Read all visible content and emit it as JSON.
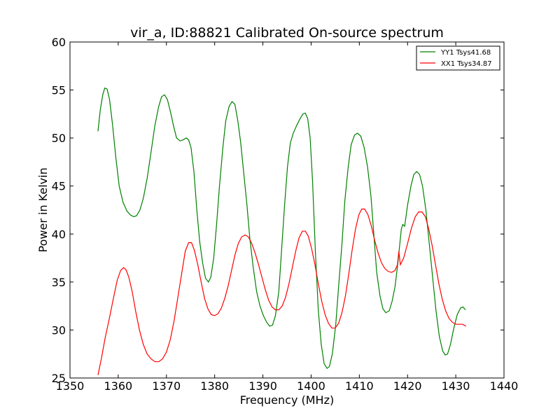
{
  "chart_data": {
    "type": "line",
    "title": "vir_a, ID:88821 Calibrated On-source spectrum",
    "xlabel": "Frequency (MHz)",
    "ylabel": "Power in Kelvin",
    "xlim": [
      1350,
      1440
    ],
    "ylim": [
      25,
      60
    ],
    "xticks": [
      1350,
      1360,
      1370,
      1380,
      1390,
      1400,
      1410,
      1420,
      1430,
      1440
    ],
    "yticks": [
      25,
      30,
      35,
      40,
      45,
      50,
      55,
      60
    ],
    "xtick_labels": [
      "1350",
      "1360",
      "1370",
      "1380",
      "1390",
      "1400",
      "1410",
      "1420",
      "1430",
      "1440"
    ],
    "ytick_labels": [
      "25",
      "30",
      "35",
      "40",
      "45",
      "50",
      "55",
      "60"
    ],
    "grid": false,
    "legend_position": "top-right",
    "series": [
      {
        "name": "YY1 Tsys41.68",
        "color": "#008000",
        "points": [
          [
            1355.8,
            50.7
          ],
          [
            1356.3,
            53.0
          ],
          [
            1356.8,
            54.5
          ],
          [
            1357.2,
            55.2
          ],
          [
            1357.7,
            55.1
          ],
          [
            1358.2,
            54.0
          ],
          [
            1358.8,
            51.5
          ],
          [
            1359.5,
            48.0
          ],
          [
            1360.2,
            45.0
          ],
          [
            1361.0,
            43.3
          ],
          [
            1361.8,
            42.4
          ],
          [
            1362.5,
            42.0
          ],
          [
            1363.2,
            41.8
          ],
          [
            1363.8,
            41.9
          ],
          [
            1364.5,
            42.5
          ],
          [
            1365.2,
            43.7
          ],
          [
            1366.0,
            45.8
          ],
          [
            1366.8,
            48.5
          ],
          [
            1367.6,
            51.3
          ],
          [
            1368.4,
            53.3
          ],
          [
            1369.0,
            54.3
          ],
          [
            1369.6,
            54.5
          ],
          [
            1370.2,
            54.0
          ],
          [
            1370.8,
            52.8
          ],
          [
            1371.5,
            51.2
          ],
          [
            1372.1,
            50.0
          ],
          [
            1372.8,
            49.7
          ],
          [
            1373.4,
            49.8
          ],
          [
            1374.1,
            50.0
          ],
          [
            1374.6,
            49.8
          ],
          [
            1375.1,
            49.0
          ],
          [
            1375.7,
            46.5
          ],
          [
            1376.3,
            42.5
          ],
          [
            1376.9,
            39.2
          ],
          [
            1377.5,
            37.0
          ],
          [
            1378.1,
            35.4
          ],
          [
            1378.7,
            35.0
          ],
          [
            1379.2,
            35.5
          ],
          [
            1379.8,
            37.5
          ],
          [
            1380.4,
            41.0
          ],
          [
            1381.0,
            45.0
          ],
          [
            1381.7,
            49.0
          ],
          [
            1382.3,
            51.8
          ],
          [
            1383.0,
            53.3
          ],
          [
            1383.6,
            53.8
          ],
          [
            1384.2,
            53.5
          ],
          [
            1384.8,
            51.8
          ],
          [
            1385.4,
            49.5
          ],
          [
            1386.0,
            46.5
          ],
          [
            1386.7,
            43.0
          ],
          [
            1387.3,
            39.5
          ],
          [
            1388.0,
            36.5
          ],
          [
            1388.7,
            34.0
          ],
          [
            1389.4,
            32.5
          ],
          [
            1390.1,
            31.5
          ],
          [
            1390.8,
            30.8
          ],
          [
            1391.4,
            30.4
          ],
          [
            1392.0,
            30.5
          ],
          [
            1392.6,
            31.5
          ],
          [
            1393.3,
            34.0
          ],
          [
            1393.9,
            38.5
          ],
          [
            1394.5,
            43.0
          ],
          [
            1395.1,
            47.0
          ],
          [
            1395.7,
            49.5
          ],
          [
            1396.3,
            50.5
          ],
          [
            1397.0,
            51.3
          ],
          [
            1397.7,
            52.0
          ],
          [
            1398.3,
            52.5
          ],
          [
            1398.8,
            52.6
          ],
          [
            1399.3,
            52.0
          ],
          [
            1399.8,
            50.0
          ],
          [
            1400.3,
            45.5
          ],
          [
            1400.9,
            38.0
          ],
          [
            1401.5,
            32.0
          ],
          [
            1402.1,
            28.5
          ],
          [
            1402.7,
            26.5
          ],
          [
            1403.3,
            26.0
          ],
          [
            1403.8,
            26.2
          ],
          [
            1404.4,
            27.5
          ],
          [
            1405.1,
            30.5
          ],
          [
            1405.7,
            34.5
          ],
          [
            1406.4,
            39.0
          ],
          [
            1407.0,
            43.5
          ],
          [
            1407.7,
            47.0
          ],
          [
            1408.3,
            49.3
          ],
          [
            1409.0,
            50.3
          ],
          [
            1409.6,
            50.5
          ],
          [
            1410.3,
            50.2
          ],
          [
            1411.0,
            49.0
          ],
          [
            1411.7,
            47.0
          ],
          [
            1412.4,
            44.0
          ],
          [
            1413.0,
            40.0
          ],
          [
            1413.6,
            36.0
          ],
          [
            1414.3,
            33.5
          ],
          [
            1414.9,
            32.2
          ],
          [
            1415.5,
            31.8
          ],
          [
            1416.2,
            32.0
          ],
          [
            1416.8,
            33.0
          ],
          [
            1417.4,
            34.5
          ],
          [
            1418.0,
            37.0
          ],
          [
            1418.7,
            40.5
          ],
          [
            1419.0,
            41.0
          ],
          [
            1419.4,
            40.8
          ],
          [
            1420.0,
            43.0
          ],
          [
            1420.7,
            45.0
          ],
          [
            1421.3,
            46.2
          ],
          [
            1421.9,
            46.5
          ],
          [
            1422.5,
            46.2
          ],
          [
            1423.1,
            45.0
          ],
          [
            1423.8,
            42.5
          ],
          [
            1424.5,
            39.0
          ],
          [
            1425.2,
            35.5
          ],
          [
            1425.9,
            32.0
          ],
          [
            1426.6,
            29.3
          ],
          [
            1427.3,
            27.8
          ],
          [
            1427.8,
            27.4
          ],
          [
            1428.3,
            27.5
          ],
          [
            1428.9,
            28.5
          ],
          [
            1429.6,
            30.2
          ],
          [
            1430.3,
            31.6
          ],
          [
            1431.0,
            32.3
          ],
          [
            1431.5,
            32.4
          ],
          [
            1432.0,
            32.1
          ]
        ]
      },
      {
        "name": "XX1 Tsys34.87",
        "color": "#ff0000",
        "points": [
          [
            1355.8,
            25.3
          ],
          [
            1356.5,
            27.0
          ],
          [
            1357.3,
            29.2
          ],
          [
            1358.2,
            31.3
          ],
          [
            1359.0,
            33.3
          ],
          [
            1359.8,
            35.2
          ],
          [
            1360.5,
            36.2
          ],
          [
            1361.1,
            36.5
          ],
          [
            1361.6,
            36.3
          ],
          [
            1362.2,
            35.5
          ],
          [
            1362.9,
            34.0
          ],
          [
            1363.6,
            32.0
          ],
          [
            1364.4,
            30.0
          ],
          [
            1365.2,
            28.5
          ],
          [
            1366.0,
            27.5
          ],
          [
            1366.8,
            27.0
          ],
          [
            1367.6,
            26.7
          ],
          [
            1368.4,
            26.7
          ],
          [
            1369.2,
            27.0
          ],
          [
            1370.0,
            27.7
          ],
          [
            1370.8,
            29.0
          ],
          [
            1371.6,
            31.0
          ],
          [
            1372.4,
            33.5
          ],
          [
            1373.2,
            36.0
          ],
          [
            1373.9,
            38.2
          ],
          [
            1374.6,
            39.1
          ],
          [
            1375.2,
            39.1
          ],
          [
            1375.8,
            38.3
          ],
          [
            1376.5,
            36.8
          ],
          [
            1377.2,
            35.0
          ],
          [
            1377.9,
            33.3
          ],
          [
            1378.6,
            32.2
          ],
          [
            1379.3,
            31.6
          ],
          [
            1380.0,
            31.5
          ],
          [
            1380.7,
            31.7
          ],
          [
            1381.4,
            32.3
          ],
          [
            1382.1,
            33.3
          ],
          [
            1382.8,
            34.6
          ],
          [
            1383.5,
            36.2
          ],
          [
            1384.2,
            37.8
          ],
          [
            1384.9,
            39.0
          ],
          [
            1385.6,
            39.7
          ],
          [
            1386.3,
            39.9
          ],
          [
            1387.0,
            39.7
          ],
          [
            1387.7,
            39.0
          ],
          [
            1388.4,
            38.0
          ],
          [
            1389.1,
            36.8
          ],
          [
            1389.8,
            35.5
          ],
          [
            1390.5,
            34.2
          ],
          [
            1391.2,
            33.1
          ],
          [
            1391.9,
            32.4
          ],
          [
            1392.6,
            32.1
          ],
          [
            1393.3,
            32.1
          ],
          [
            1394.0,
            32.5
          ],
          [
            1394.7,
            33.4
          ],
          [
            1395.4,
            34.8
          ],
          [
            1396.1,
            36.5
          ],
          [
            1396.8,
            38.2
          ],
          [
            1397.5,
            39.6
          ],
          [
            1398.2,
            40.3
          ],
          [
            1398.8,
            40.3
          ],
          [
            1399.4,
            39.8
          ],
          [
            1400.1,
            38.5
          ],
          [
            1400.8,
            36.8
          ],
          [
            1401.5,
            34.8
          ],
          [
            1402.2,
            33.0
          ],
          [
            1402.9,
            31.6
          ],
          [
            1403.6,
            30.7
          ],
          [
            1404.3,
            30.2
          ],
          [
            1405.0,
            30.2
          ],
          [
            1405.7,
            30.7
          ],
          [
            1406.4,
            31.8
          ],
          [
            1407.1,
            33.5
          ],
          [
            1407.8,
            35.8
          ],
          [
            1408.5,
            38.3
          ],
          [
            1409.2,
            40.5
          ],
          [
            1409.9,
            42.0
          ],
          [
            1410.5,
            42.6
          ],
          [
            1411.1,
            42.6
          ],
          [
            1411.8,
            42.0
          ],
          [
            1412.5,
            40.8
          ],
          [
            1413.2,
            39.3
          ],
          [
            1413.9,
            38.0
          ],
          [
            1414.6,
            37.0
          ],
          [
            1415.3,
            36.4
          ],
          [
            1416.0,
            36.1
          ],
          [
            1416.7,
            36.0
          ],
          [
            1417.4,
            36.2
          ],
          [
            1417.9,
            36.8
          ],
          [
            1418.2,
            38.2
          ],
          [
            1418.5,
            36.8
          ],
          [
            1419.2,
            37.5
          ],
          [
            1420.0,
            39.0
          ],
          [
            1420.8,
            40.6
          ],
          [
            1421.6,
            41.8
          ],
          [
            1422.3,
            42.3
          ],
          [
            1423.0,
            42.3
          ],
          [
            1423.7,
            41.8
          ],
          [
            1424.4,
            40.5
          ],
          [
            1425.1,
            38.8
          ],
          [
            1425.8,
            36.8
          ],
          [
            1426.5,
            34.8
          ],
          [
            1427.2,
            33.2
          ],
          [
            1427.9,
            32.0
          ],
          [
            1428.6,
            31.2
          ],
          [
            1429.3,
            30.8
          ],
          [
            1430.0,
            30.6
          ],
          [
            1430.7,
            30.6
          ],
          [
            1431.4,
            30.6
          ],
          [
            1432.1,
            30.4
          ]
        ]
      }
    ]
  }
}
